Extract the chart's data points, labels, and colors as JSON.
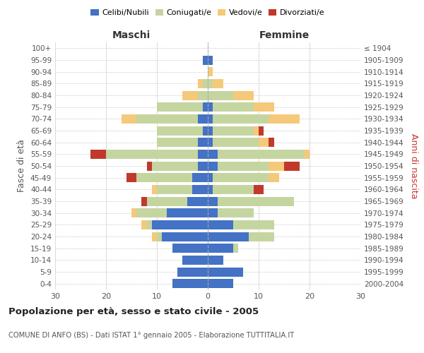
{
  "age_groups": [
    "0-4",
    "5-9",
    "10-14",
    "15-19",
    "20-24",
    "25-29",
    "30-34",
    "35-39",
    "40-44",
    "45-49",
    "50-54",
    "55-59",
    "60-64",
    "65-69",
    "70-74",
    "75-79",
    "80-84",
    "85-89",
    "90-94",
    "95-99",
    "100+"
  ],
  "birth_years": [
    "2000-2004",
    "1995-1999",
    "1990-1994",
    "1985-1989",
    "1980-1984",
    "1975-1979",
    "1970-1974",
    "1965-1969",
    "1960-1964",
    "1955-1959",
    "1950-1954",
    "1945-1949",
    "1940-1944",
    "1935-1939",
    "1930-1934",
    "1925-1929",
    "1920-1924",
    "1915-1919",
    "1910-1914",
    "1905-1909",
    "≤ 1904"
  ],
  "maschi": {
    "celibi": [
      7,
      6,
      5,
      7,
      9,
      11,
      8,
      4,
      3,
      3,
      2,
      2,
      2,
      1,
      2,
      1,
      0,
      0,
      0,
      1,
      0
    ],
    "coniugati": [
      0,
      0,
      0,
      0,
      1,
      1,
      6,
      8,
      7,
      11,
      9,
      18,
      8,
      9,
      12,
      9,
      2,
      1,
      0,
      0,
      0
    ],
    "vedove": [
      0,
      0,
      0,
      0,
      1,
      1,
      1,
      0,
      1,
      0,
      0,
      0,
      0,
      0,
      3,
      0,
      3,
      1,
      0,
      0,
      0
    ],
    "divorziate": [
      0,
      0,
      0,
      0,
      0,
      0,
      0,
      1,
      0,
      2,
      1,
      3,
      0,
      0,
      0,
      0,
      0,
      0,
      0,
      0,
      0
    ]
  },
  "femmine": {
    "nubili": [
      5,
      7,
      3,
      5,
      8,
      5,
      2,
      2,
      1,
      1,
      2,
      2,
      1,
      1,
      1,
      1,
      0,
      0,
      0,
      1,
      0
    ],
    "coniugate": [
      0,
      0,
      0,
      1,
      5,
      8,
      7,
      15,
      8,
      11,
      10,
      17,
      9,
      8,
      11,
      8,
      5,
      1,
      0,
      0,
      0
    ],
    "vedove": [
      0,
      0,
      0,
      0,
      0,
      0,
      0,
      0,
      0,
      2,
      3,
      1,
      2,
      1,
      6,
      4,
      4,
      2,
      1,
      0,
      0
    ],
    "divorziate": [
      0,
      0,
      0,
      0,
      0,
      0,
      0,
      0,
      2,
      0,
      3,
      0,
      1,
      1,
      0,
      0,
      0,
      0,
      0,
      0,
      0
    ]
  },
  "colors": {
    "celibi": "#4472c4",
    "coniugati": "#c5d5a0",
    "vedove": "#f5c97a",
    "divorziate": "#c0392b"
  },
  "title": "Popolazione per età, sesso e stato civile - 2005",
  "subtitle": "COMUNE DI ANFO (BS) - Dati ISTAT 1° gennaio 2005 - Elaborazione TUTTITALIA.IT",
  "xlabel_left": "Maschi",
  "xlabel_right": "Femmine",
  "ylabel_left": "Fasce di età",
  "ylabel_right": "Anni di nascita",
  "xlim": 30,
  "legend_labels": [
    "Celibi/Nubili",
    "Coniugati/e",
    "Vedovi/e",
    "Divorziati/e"
  ],
  "background_color": "#ffffff",
  "grid_color": "#cccccc"
}
